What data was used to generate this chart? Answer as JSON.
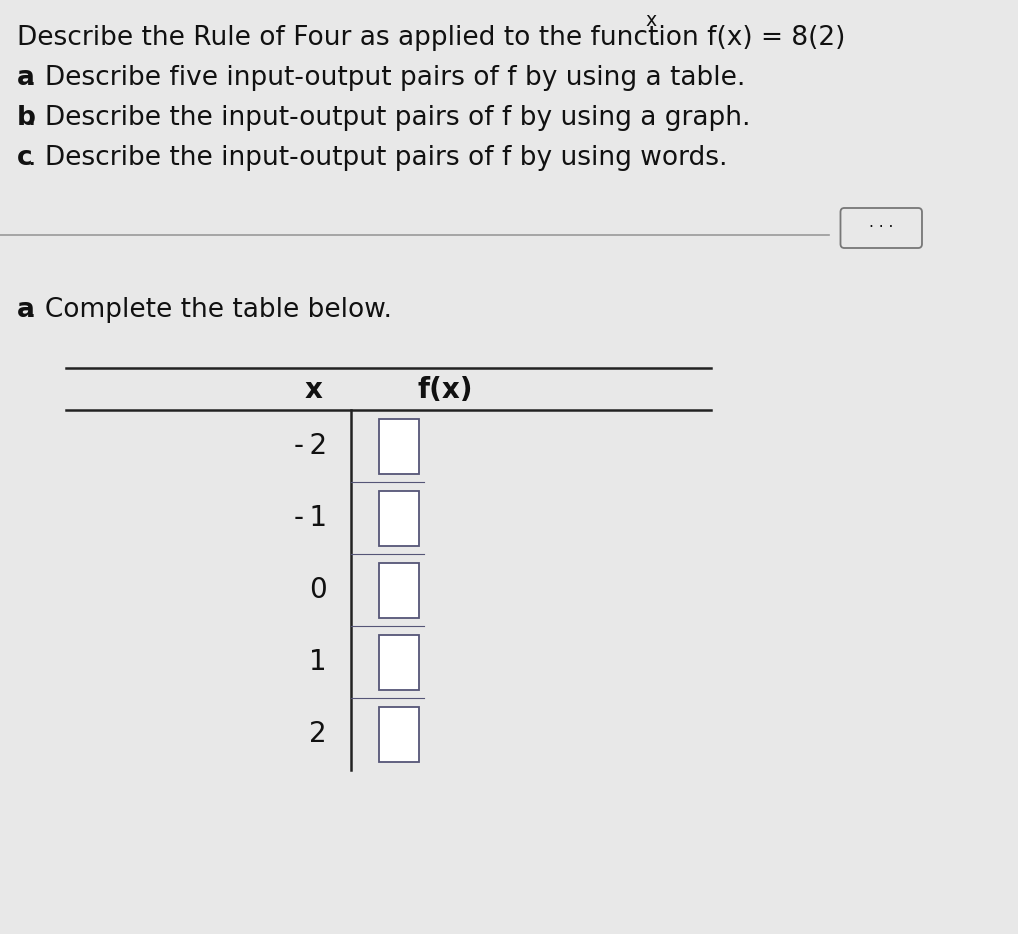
{
  "background_color": "#e8e8e8",
  "text_color": "#111111",
  "separator_color": "#999999",
  "table_line_color": "#222222",
  "checkbox_color": "#ffffff",
  "checkbox_edge_color": "#555577",
  "dots_button_edge": "#777777",
  "font_size_main": 19,
  "font_size_table": 20,
  "line1": "Describe the Rule of Four as applied to the function f(x) = 8(2)",
  "line1_sup": "x",
  "line1_dot": ".",
  "lines_abc": [
    [
      "a",
      ". Describe five input-output pairs of f by using a table."
    ],
    [
      "b",
      ". Describe the input-output pairs of f by using a graph."
    ],
    [
      "c",
      ". Describe the input-output pairs of f by using words."
    ]
  ],
  "part_a_prefix": "a",
  "part_a_suffix": ". Complete the table below.",
  "x_values": [
    "- 2",
    "- 1",
    "0",
    "1",
    "2"
  ],
  "table_x_header": "x",
  "table_fx_header": "f(x)"
}
